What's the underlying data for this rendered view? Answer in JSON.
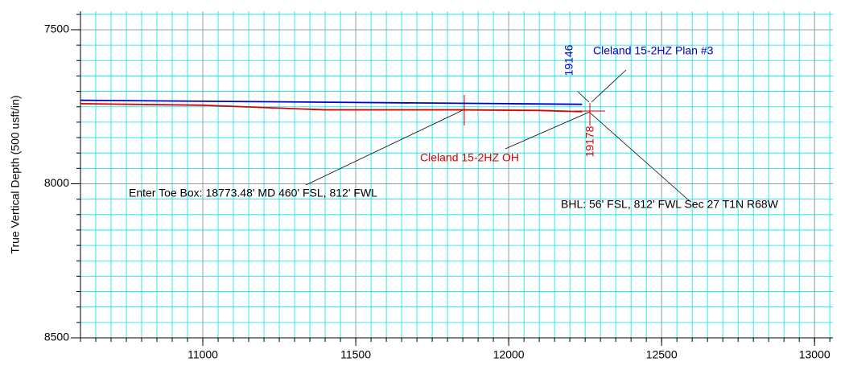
{
  "chart_data": {
    "type": "line",
    "ylabel": "True Vertical Depth (500 usft/in)",
    "xlim": [
      10600,
      13060
    ],
    "xticks": [
      11000,
      11500,
      12000,
      12500,
      13000
    ],
    "ylim": [
      7440,
      8500
    ],
    "yticks": [
      7500,
      8000,
      8500
    ],
    "y_inverted": true,
    "grid": true,
    "series": [
      {
        "name": "Cleland 15-2HZ Plan #3",
        "color": "#0000cc",
        "x": [
          10600,
          11000,
          11500,
          12000,
          12240
        ],
        "values": [
          7729,
          7732,
          7736,
          7740,
          7742
        ],
        "md_label": 19146
      },
      {
        "name": "Cleland 15-2HZ OH",
        "color": "#dd0000",
        "x": [
          10600,
          11000,
          11400,
          11840,
          12100,
          12240
        ],
        "values": [
          7740,
          7745,
          7760,
          7760,
          7762,
          7766
        ],
        "md_label": 19178
      }
    ],
    "annotations": [
      "Enter Toe Box: 18773.48' MD 460' FSL, 812' FWL",
      "BHL: 56' FSL, 812' FWL Sec 27 T1N R68W"
    ]
  }
}
